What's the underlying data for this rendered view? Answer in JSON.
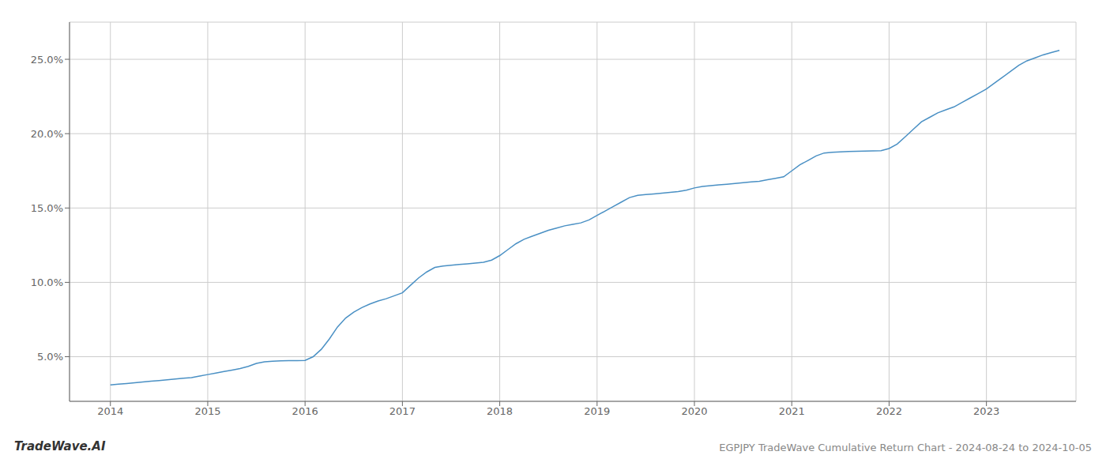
{
  "chart_data": {
    "type": "line",
    "title": "EGPJPY TradeWave Cumulative Return Chart - 2024-08-24 to 2024-10-05",
    "annotations": [
      "TradeWave.AI"
    ],
    "color": "#4a90c4",
    "grid": true,
    "x": [
      2014.0,
      2014.083,
      2014.167,
      2014.25,
      2014.333,
      2014.417,
      2014.5,
      2014.583,
      2014.667,
      2014.75,
      2014.833,
      2014.917,
      2015.0,
      2015.083,
      2015.167,
      2015.25,
      2015.333,
      2015.417,
      2015.5,
      2015.583,
      2015.667,
      2015.75,
      2015.833,
      2015.917,
      2016.0,
      2016.083,
      2016.167,
      2016.25,
      2016.333,
      2016.417,
      2016.5,
      2016.583,
      2016.667,
      2016.75,
      2016.833,
      2016.917,
      2017.0,
      2017.083,
      2017.167,
      2017.25,
      2017.333,
      2017.417,
      2017.5,
      2017.583,
      2017.667,
      2017.75,
      2017.833,
      2017.917,
      2018.0,
      2018.083,
      2018.167,
      2018.25,
      2018.333,
      2018.417,
      2018.5,
      2018.583,
      2018.667,
      2018.75,
      2018.833,
      2018.917,
      2019.0,
      2019.083,
      2019.167,
      2019.25,
      2019.333,
      2019.417,
      2019.5,
      2019.583,
      2019.667,
      2019.75,
      2019.833,
      2019.917,
      2020.0,
      2020.083,
      2020.167,
      2020.25,
      2020.333,
      2020.417,
      2020.5,
      2020.583,
      2020.667,
      2020.75,
      2020.833,
      2020.917,
      2021.0,
      2021.083,
      2021.167,
      2021.25,
      2021.333,
      2021.417,
      2021.5,
      2021.583,
      2021.667,
      2021.75,
      2021.833,
      2021.917,
      2022.0,
      2022.083,
      2022.167,
      2022.25,
      2022.333,
      2022.417,
      2022.5,
      2022.583,
      2022.667,
      2022.75,
      2022.833,
      2022.917,
      2023.0,
      2023.083,
      2023.167,
      2023.25,
      2023.333,
      2023.417,
      2023.5,
      2023.583,
      2023.667,
      2023.75
    ],
    "values": [
      3.1,
      3.15,
      3.2,
      3.25,
      3.3,
      3.35,
      3.4,
      3.45,
      3.5,
      3.55,
      3.6,
      3.7,
      3.8,
      3.9,
      4.0,
      4.1,
      4.2,
      4.35,
      4.55,
      4.65,
      4.7,
      4.72,
      4.73,
      4.74,
      4.75,
      5.0,
      5.5,
      6.2,
      7.0,
      7.6,
      8.0,
      8.3,
      8.55,
      8.75,
      8.9,
      9.1,
      9.3,
      9.8,
      10.3,
      10.7,
      11.0,
      11.1,
      11.15,
      11.2,
      11.25,
      11.3,
      11.35,
      11.5,
      11.8,
      12.2,
      12.6,
      12.9,
      13.1,
      13.3,
      13.5,
      13.65,
      13.8,
      13.9,
      14.0,
      14.2,
      14.5,
      14.8,
      15.1,
      15.4,
      15.7,
      15.85,
      15.9,
      15.95,
      16.0,
      16.05,
      16.1,
      16.2,
      16.35,
      16.45,
      16.5,
      16.55,
      16.6,
      16.65,
      16.7,
      16.75,
      16.8,
      16.9,
      17.0,
      17.1,
      17.5,
      17.9,
      18.2,
      18.5,
      18.7,
      18.75,
      18.78,
      18.8,
      18.82,
      18.83,
      18.84,
      18.85,
      19.0,
      19.3,
      19.8,
      20.3,
      20.8,
      21.1,
      21.4,
      21.6,
      21.8,
      22.1,
      22.4,
      22.7,
      23.0,
      23.4,
      23.8,
      24.2,
      24.6,
      24.9,
      25.1,
      25.3,
      25.45,
      25.6
    ],
    "xlim": [
      2013.58,
      2023.92
    ],
    "xticks": [
      2014,
      2015,
      2016,
      2017,
      2018,
      2019,
      2020,
      2021,
      2022,
      2023
    ],
    "ylim": [
      2.0,
      27.5
    ],
    "yticks": [
      {
        "value": 5.0,
        "label": "5.0%"
      },
      {
        "value": 10.0,
        "label": "10.0%"
      },
      {
        "value": 15.0,
        "label": "15.0%"
      },
      {
        "value": 20.0,
        "label": "20.0%"
      },
      {
        "value": 25.0,
        "label": "25.0%"
      }
    ]
  }
}
